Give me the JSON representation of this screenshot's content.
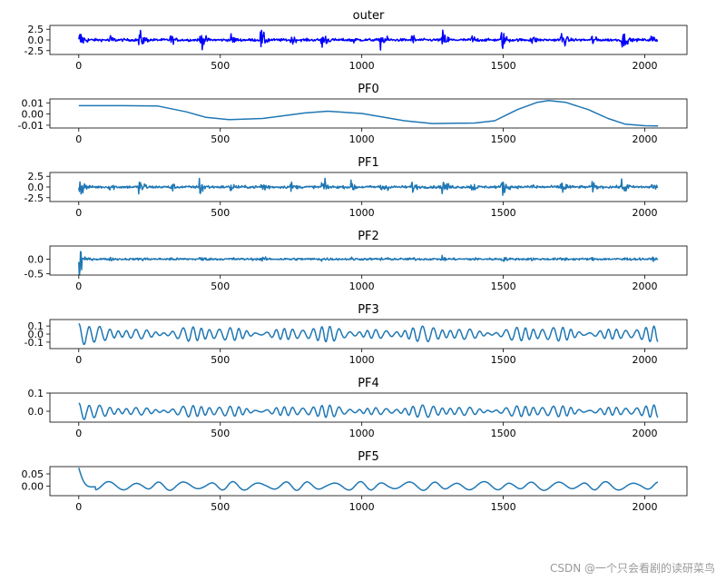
{
  "watermark": "CSDN @一个只会看剧的读研菜鸟",
  "chart_data": [
    {
      "type": "line",
      "title": "outer",
      "color": "#0000ff",
      "x_range": [
        0,
        2047
      ],
      "xlim": [
        -102,
        2149
      ],
      "ylim": [
        -3.4,
        3.4
      ],
      "xticks": [
        0,
        500,
        1000,
        1500,
        2000
      ],
      "yticks": [
        -2.5,
        0.0,
        2.5
      ],
      "ytick_labels": [
        "-2.5",
        "0.0",
        "2.5"
      ],
      "signal": "bursty",
      "amplitude": 3.0
    },
    {
      "type": "line",
      "title": "PF0",
      "color": "#1f77b4",
      "x_range": [
        0,
        2047
      ],
      "xlim": [
        -102,
        2149
      ],
      "ylim": [
        -0.0125,
        0.0135
      ],
      "xticks": [
        0,
        500,
        1000,
        1500,
        2000
      ],
      "yticks": [
        -0.01,
        0.0,
        0.01
      ],
      "ytick_labels": [
        "-0.01",
        "0.00",
        "0.01"
      ],
      "signal": "trend",
      "points": [
        [
          0,
          0.0075
        ],
        [
          150,
          0.0075
        ],
        [
          280,
          0.0072
        ],
        [
          380,
          0.002
        ],
        [
          450,
          -0.003
        ],
        [
          530,
          -0.005
        ],
        [
          650,
          -0.004
        ],
        [
          800,
          0.001
        ],
        [
          880,
          0.0025
        ],
        [
          1000,
          0.0005
        ],
        [
          1150,
          -0.006
        ],
        [
          1250,
          -0.0085
        ],
        [
          1400,
          -0.008
        ],
        [
          1470,
          -0.006
        ],
        [
          1550,
          0.004
        ],
        [
          1620,
          0.0105
        ],
        [
          1660,
          0.012
        ],
        [
          1720,
          0.0105
        ],
        [
          1800,
          0.004
        ],
        [
          1870,
          -0.004
        ],
        [
          1930,
          -0.009
        ],
        [
          2000,
          -0.0105
        ],
        [
          2047,
          -0.0107
        ]
      ]
    },
    {
      "type": "line",
      "title": "PF1",
      "color": "#1f77b4",
      "x_range": [
        0,
        2047
      ],
      "xlim": [
        -102,
        2149
      ],
      "ylim": [
        -3.4,
        3.4
      ],
      "xticks": [
        0,
        500,
        1000,
        1500,
        2000
      ],
      "yticks": [
        -2.5,
        0.0,
        2.5
      ],
      "ytick_labels": [
        "-2.5",
        "0.0",
        "2.5"
      ],
      "signal": "bursty",
      "amplitude": 3.0
    },
    {
      "type": "line",
      "title": "PF2",
      "color": "#1f77b4",
      "x_range": [
        0,
        2047
      ],
      "xlim": [
        -102,
        2149
      ],
      "ylim": [
        -0.55,
        0.45
      ],
      "xticks": [
        0,
        500,
        1000,
        1500,
        2000
      ],
      "yticks": [
        -0.5,
        0.0
      ],
      "ytick_labels": [
        "-0.5",
        "0.0"
      ],
      "signal": "noise",
      "amplitude": 0.1
    },
    {
      "type": "line",
      "title": "PF3",
      "color": "#1f77b4",
      "x_range": [
        0,
        2047
      ],
      "xlim": [
        -102,
        2149
      ],
      "ylim": [
        -0.18,
        0.18
      ],
      "xticks": [
        0,
        500,
        1000,
        1500,
        2000
      ],
      "yticks": [
        -0.1,
        0.0,
        0.1
      ],
      "ytick_labels": [
        "-0.1",
        "0.0",
        "0.1"
      ],
      "signal": "oscillation",
      "amplitude": 0.1
    },
    {
      "type": "line",
      "title": "PF4",
      "color": "#1f77b4",
      "x_range": [
        0,
        2047
      ],
      "xlim": [
        -102,
        2149
      ],
      "ylim": [
        -0.06,
        0.1
      ],
      "xticks": [
        0,
        500,
        1000,
        1500,
        2000
      ],
      "yticks": [
        0.0,
        0.1
      ],
      "ytick_labels": [
        "0.0",
        "0.1"
      ],
      "signal": "oscillation",
      "amplitude": 0.035
    },
    {
      "type": "line",
      "title": "PF5",
      "color": "#1f77b4",
      "x_range": [
        0,
        2047
      ],
      "xlim": [
        -102,
        2149
      ],
      "ylim": [
        -0.04,
        0.08
      ],
      "xticks": [
        0,
        500,
        1000,
        1500,
        2000
      ],
      "yticks": [
        0.0,
        0.05
      ],
      "ytick_labels": [
        "0.00",
        "0.05"
      ],
      "signal": "slow",
      "amplitude": 0.018
    }
  ]
}
